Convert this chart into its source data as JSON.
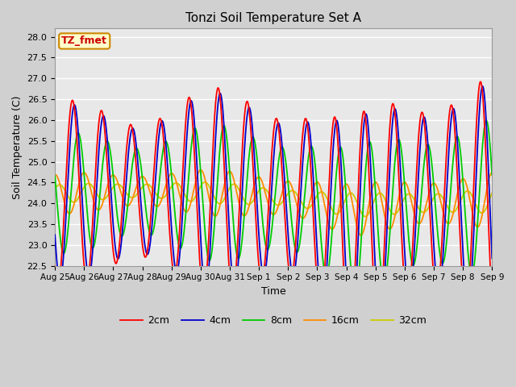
{
  "title": "Tonzi Soil Temperature Set A",
  "xlabel": "Time",
  "ylabel": "Soil Temperature (C)",
  "ylim": [
    22.5,
    28.2
  ],
  "n_days": 15,
  "annotation_text": "TZ_fmet",
  "legend_labels": [
    "2cm",
    "4cm",
    "8cm",
    "16cm",
    "32cm"
  ],
  "legend_colors": [
    "#ff0000",
    "#0000cd",
    "#00cc00",
    "#ff8c00",
    "#cccc00"
  ],
  "line_width": 1.3,
  "xtick_labels": [
    "Aug 25",
    "Aug 26",
    "Aug 27",
    "Aug 28",
    "Aug 29",
    "Aug 30",
    "Aug 31",
    "Sep 1",
    "Sep 2",
    "Sep 3",
    "Sep 4",
    "Sep 5",
    "Sep 6",
    "Sep 7",
    "Sep 8",
    "Sep 9"
  ],
  "ytick_values": [
    22.5,
    23.0,
    23.5,
    24.0,
    24.5,
    25.0,
    25.5,
    26.0,
    26.5,
    27.0,
    27.5,
    28.0
  ],
  "fig_bg_color": "#d0d0d0",
  "plot_bg_color": "#e8e8e8"
}
